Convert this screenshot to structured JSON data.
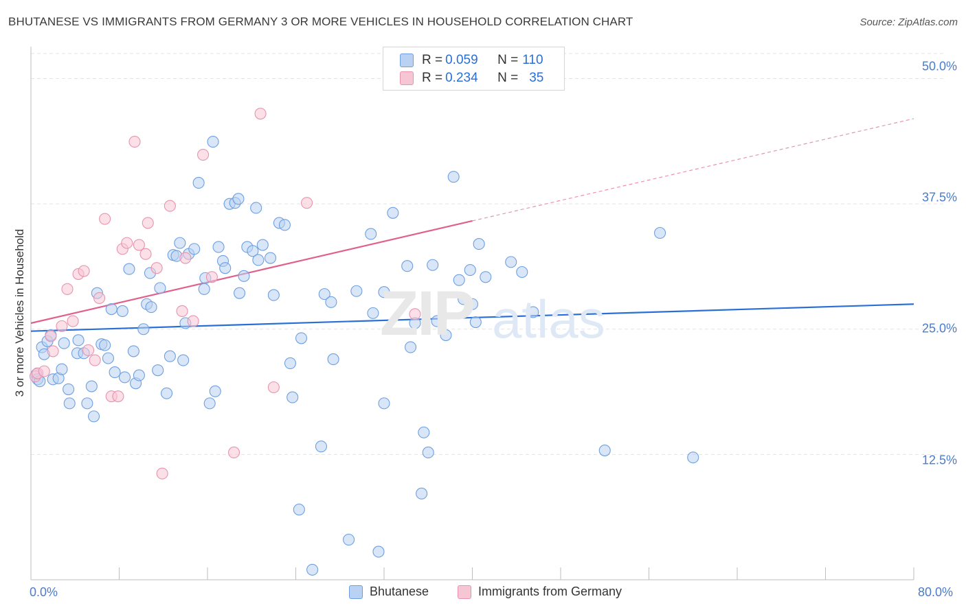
{
  "title": "BHUTANESE VS IMMIGRANTS FROM GERMANY 3 OR MORE VEHICLES IN HOUSEHOLD CORRELATION CHART",
  "source": "Source: ZipAtlas.com",
  "watermark": {
    "zip": "ZIP",
    "atlas": "atlas"
  },
  "legend": {
    "rows": [
      {
        "r_label": "R = ",
        "r_value": "0.059",
        "n_label": "N = ",
        "n_value": "110"
      },
      {
        "r_label": "R = ",
        "r_value": "0.234",
        "n_label": "N = ",
        "n_value": "35"
      }
    ]
  },
  "bottom_legend": [
    "Bhutanese",
    "Immigrants from Germany"
  ],
  "colors": {
    "blue_fill": "#b9d1f2",
    "blue_stroke": "#6d9fe0",
    "blue_line": "#2a6fd6",
    "pink_fill": "#f7c6d5",
    "pink_stroke": "#e893ae",
    "pink_line": "#e0608c",
    "grid": "#e3e3e3",
    "tick_text": "#4a7cc9"
  },
  "chart_data": {
    "type": "scatter",
    "title": "BHUTANESE VS IMMIGRANTS FROM GERMANY 3 OR MORE VEHICLES IN HOUSEHOLD CORRELATION CHART",
    "xlabel": "",
    "ylabel": "3 or more Vehicles in Household",
    "xlim": [
      0,
      80
    ],
    "ylim": [
      0,
      52.5
    ],
    "x_tick_labels": [
      "0.0%",
      "80.0%"
    ],
    "y_ticks": [
      12.5,
      25.0,
      37.5,
      50.0
    ],
    "y_tick_labels": [
      "12.5%",
      "25.0%",
      "37.5%",
      "50.0%"
    ],
    "grid": "horizontal dashed",
    "legend_position": "top-center",
    "series": [
      {
        "name": "Bhutanese",
        "R": 0.059,
        "N": 110,
        "trend": {
          "x": [
            0,
            80
          ],
          "y": [
            24.8,
            27.5
          ]
        },
        "points": [
          [
            0.5,
            20.5
          ],
          [
            0.6,
            20.0
          ],
          [
            0.8,
            19.8
          ],
          [
            1.0,
            23.2
          ],
          [
            1.2,
            22.5
          ],
          [
            1.5,
            23.8
          ],
          [
            1.8,
            24.4
          ],
          [
            2.0,
            20.0
          ],
          [
            2.5,
            20.1
          ],
          [
            2.8,
            21.0
          ],
          [
            3.0,
            23.6
          ],
          [
            3.4,
            19.0
          ],
          [
            3.5,
            17.6
          ],
          [
            4.2,
            22.6
          ],
          [
            4.3,
            23.9
          ],
          [
            4.8,
            22.6
          ],
          [
            5.1,
            17.6
          ],
          [
            5.5,
            19.3
          ],
          [
            5.7,
            16.3
          ],
          [
            6.0,
            28.6
          ],
          [
            6.4,
            23.5
          ],
          [
            6.7,
            23.4
          ],
          [
            7.0,
            22.1
          ],
          [
            7.3,
            27.0
          ],
          [
            7.6,
            20.7
          ],
          [
            8.3,
            26.8
          ],
          [
            8.5,
            20.2
          ],
          [
            8.9,
            31.0
          ],
          [
            9.3,
            22.8
          ],
          [
            9.5,
            19.6
          ],
          [
            9.8,
            20.4
          ],
          [
            10.2,
            25.0
          ],
          [
            10.5,
            27.5
          ],
          [
            10.8,
            30.6
          ],
          [
            10.9,
            27.2
          ],
          [
            11.5,
            20.9
          ],
          [
            11.7,
            29.1
          ],
          [
            12.3,
            18.6
          ],
          [
            12.6,
            22.3
          ],
          [
            12.9,
            32.4
          ],
          [
            13.2,
            32.3
          ],
          [
            13.5,
            33.6
          ],
          [
            13.8,
            21.9
          ],
          [
            14.0,
            25.6
          ],
          [
            14.3,
            32.5
          ],
          [
            14.8,
            33.0
          ],
          [
            15.2,
            39.6
          ],
          [
            15.7,
            29.0
          ],
          [
            15.8,
            30.1
          ],
          [
            16.2,
            17.6
          ],
          [
            16.5,
            43.7
          ],
          [
            16.7,
            18.8
          ],
          [
            17.0,
            33.2
          ],
          [
            17.4,
            31.8
          ],
          [
            17.6,
            31.1
          ],
          [
            18.0,
            37.5
          ],
          [
            18.5,
            37.6
          ],
          [
            18.8,
            38.0
          ],
          [
            18.9,
            28.6
          ],
          [
            19.3,
            30.3
          ],
          [
            19.6,
            33.2
          ],
          [
            20.1,
            32.8
          ],
          [
            20.4,
            37.1
          ],
          [
            20.6,
            31.9
          ],
          [
            21.0,
            33.4
          ],
          [
            21.7,
            32.1
          ],
          [
            22.0,
            28.4
          ],
          [
            22.5,
            35.6
          ],
          [
            23.0,
            35.4
          ],
          [
            23.5,
            21.6
          ],
          [
            23.7,
            18.2
          ],
          [
            24.3,
            7.0
          ],
          [
            24.5,
            24.1
          ],
          [
            25.5,
            1.0
          ],
          [
            26.3,
            13.3
          ],
          [
            26.6,
            28.5
          ],
          [
            27.2,
            27.7
          ],
          [
            27.4,
            22.0
          ],
          [
            28.8,
            4.0
          ],
          [
            29.5,
            28.8
          ],
          [
            30.8,
            34.5
          ],
          [
            31.0,
            26.6
          ],
          [
            31.5,
            2.8
          ],
          [
            32.0,
            28.7
          ],
          [
            32.0,
            17.6
          ],
          [
            32.8,
            36.6
          ],
          [
            34.1,
            31.3
          ],
          [
            34.4,
            23.2
          ],
          [
            34.8,
            25.6
          ],
          [
            35.4,
            8.6
          ],
          [
            35.6,
            14.7
          ],
          [
            36.0,
            12.7
          ],
          [
            36.4,
            31.4
          ],
          [
            36.8,
            25.8
          ],
          [
            37.6,
            24.4
          ],
          [
            38.3,
            40.2
          ],
          [
            38.8,
            29.9
          ],
          [
            39.2,
            28.0
          ],
          [
            39.8,
            30.9
          ],
          [
            40.0,
            27.5
          ],
          [
            40.3,
            25.7
          ],
          [
            40.6,
            33.5
          ],
          [
            41.2,
            30.2
          ],
          [
            43.5,
            31.7
          ],
          [
            44.5,
            30.7
          ],
          [
            45.5,
            26.7
          ],
          [
            52.0,
            12.9
          ],
          [
            57.0,
            34.6
          ],
          [
            60.0,
            12.2
          ]
        ]
      },
      {
        "name": "Immigrants from Germany",
        "R": 0.234,
        "N": 35,
        "trend": {
          "x": [
            0,
            80
          ],
          "y": [
            25.6,
            46.0
          ],
          "solid_until_x": 40
        },
        "points": [
          [
            0.4,
            20.3
          ],
          [
            0.6,
            20.6
          ],
          [
            1.2,
            20.8
          ],
          [
            1.8,
            24.3
          ],
          [
            2.0,
            22.8
          ],
          [
            2.8,
            25.3
          ],
          [
            3.3,
            29.0
          ],
          [
            3.8,
            25.8
          ],
          [
            4.3,
            30.5
          ],
          [
            4.8,
            30.8
          ],
          [
            5.2,
            22.9
          ],
          [
            5.8,
            21.9
          ],
          [
            6.2,
            28.1
          ],
          [
            6.7,
            36.0
          ],
          [
            7.3,
            18.3
          ],
          [
            7.9,
            18.3
          ],
          [
            8.3,
            33.0
          ],
          [
            8.7,
            33.6
          ],
          [
            9.4,
            43.7
          ],
          [
            9.8,
            33.4
          ],
          [
            10.4,
            32.5
          ],
          [
            10.6,
            35.6
          ],
          [
            11.4,
            31.1
          ],
          [
            11.9,
            10.6
          ],
          [
            12.6,
            37.3
          ],
          [
            13.7,
            26.8
          ],
          [
            14.0,
            32.1
          ],
          [
            14.7,
            25.8
          ],
          [
            15.6,
            42.4
          ],
          [
            16.4,
            30.2
          ],
          [
            18.4,
            12.7
          ],
          [
            20.8,
            46.5
          ],
          [
            22.0,
            19.2
          ],
          [
            25.0,
            37.6
          ],
          [
            34.8,
            26.5
          ]
        ]
      }
    ]
  }
}
